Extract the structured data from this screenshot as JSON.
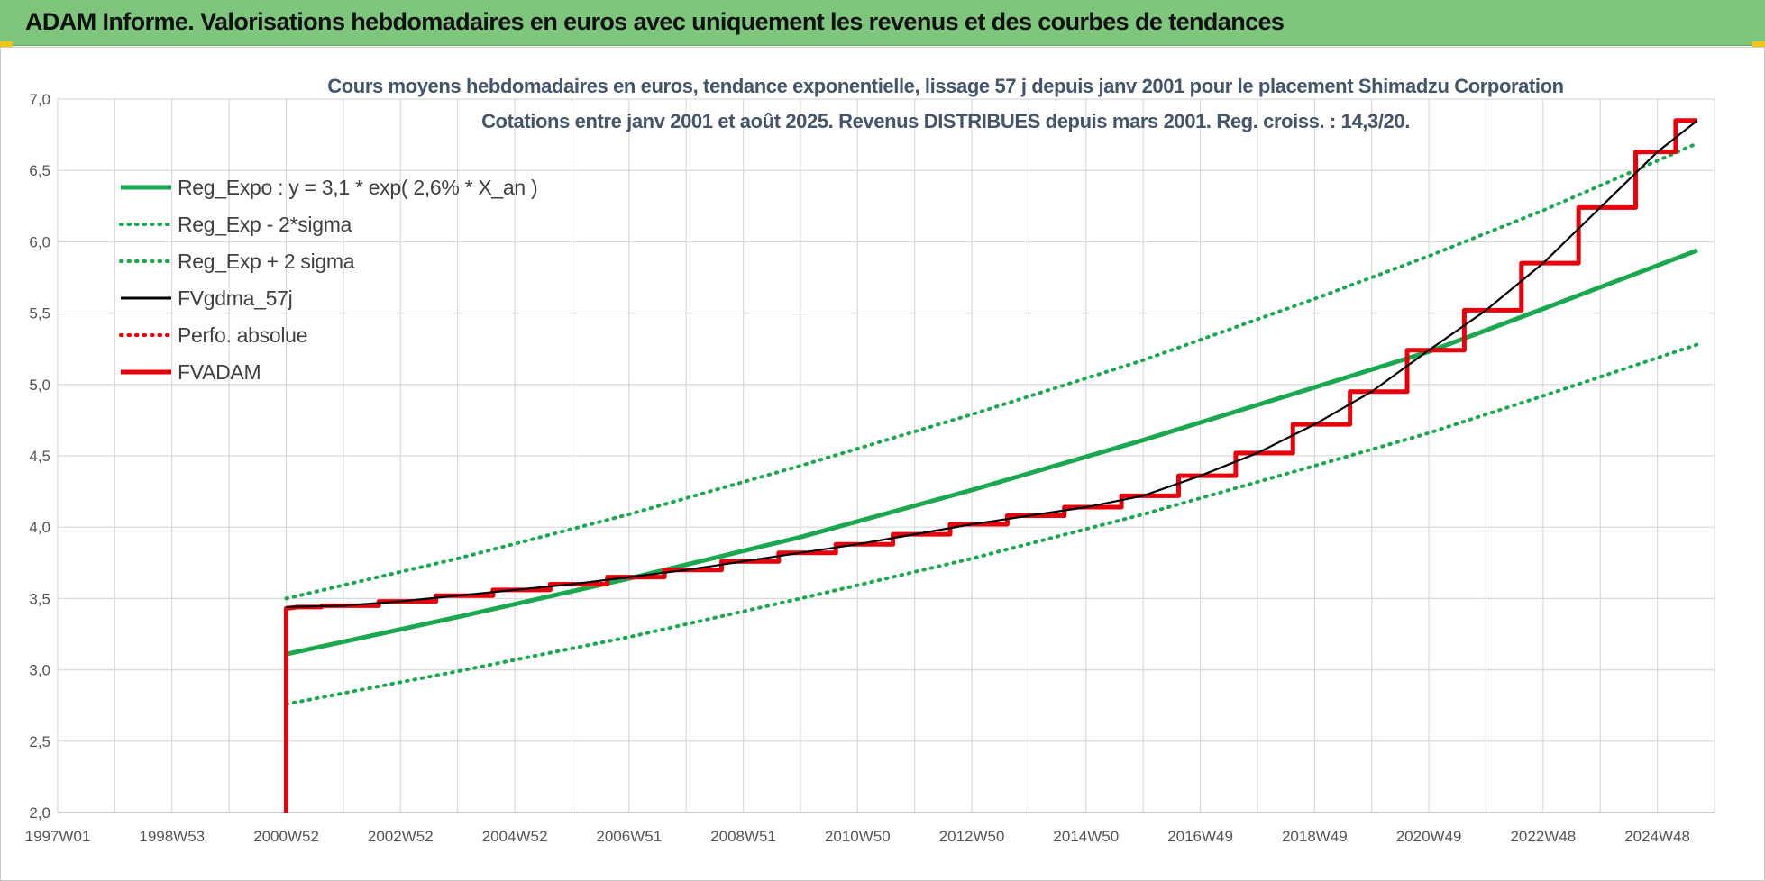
{
  "header": {
    "title": "ADAM Informe. Valorisations hebdomadaires en euros avec uniquement les revenus et des courbes de tendances"
  },
  "colors": {
    "banner": "#7dc67c",
    "reg_green": "#1aa84f",
    "red": "#e8000b",
    "black": "#000000",
    "grid": "#d9d9d9"
  },
  "chart_data": {
    "type": "line",
    "title": "Cours moyens hebdomadaires en euros, tendance exponentielle, lissage 57 j depuis janv 2001 pour le placement Shimadzu Corporation",
    "subtitle": "Cotations entre janv 2001 et août 2025. Revenus DISTRIBUES depuis mars 2001. Reg. croiss. : 14,3/20.",
    "xlabel": "",
    "ylabel": "",
    "xlim": [
      1997.0,
      2026.0
    ],
    "ylim": [
      2.0,
      7.0
    ],
    "y_ticks": [
      "2,0",
      "2,5",
      "3,0",
      "3,5",
      "4,0",
      "4,5",
      "5,0",
      "5,5",
      "6,0",
      "6,5",
      "7,0"
    ],
    "x_ticks": [
      {
        "label": "1997W01",
        "x": 1997.0
      },
      {
        "label": "1998W53",
        "x": 1999.0
      },
      {
        "label": "2000W52",
        "x": 2001.0
      },
      {
        "label": "2002W52",
        "x": 2003.0
      },
      {
        "label": "2004W52",
        "x": 2005.0
      },
      {
        "label": "2006W51",
        "x": 2007.0
      },
      {
        "label": "2008W51",
        "x": 2009.0
      },
      {
        "label": "2010W50",
        "x": 2011.0
      },
      {
        "label": "2012W50",
        "x": 2013.0
      },
      {
        "label": "2014W50",
        "x": 2015.0
      },
      {
        "label": "2016W49",
        "x": 2017.0
      },
      {
        "label": "2018W49",
        "x": 2019.0
      },
      {
        "label": "2020W49",
        "x": 2021.0
      },
      {
        "label": "2022W48",
        "x": 2023.0
      },
      {
        "label": "2024W48",
        "x": 2025.0
      }
    ],
    "grid": true,
    "legend_position": "top-left",
    "series": [
      {
        "name": "Reg_Expo : y = 3,1 * exp( 2,6% *  X_an )",
        "color": "#1aa84f",
        "style": "solid",
        "x": [
          2001.0,
          2004.0,
          2007.0,
          2010.0,
          2013.0,
          2016.0,
          2019.0,
          2021.0,
          2023.0,
          2025.7
        ],
        "y": [
          3.11,
          3.37,
          3.64,
          3.93,
          4.26,
          4.61,
          4.98,
          5.23,
          5.53,
          5.94
        ]
      },
      {
        "name": "Reg_Exp - 2*sigma",
        "color": "#1aa84f",
        "style": "dotted",
        "x": [
          2001.0,
          2004.0,
          2007.0,
          2010.0,
          2013.0,
          2016.0,
          2019.0,
          2021.0,
          2023.0,
          2025.7
        ],
        "y": [
          2.76,
          2.99,
          3.23,
          3.5,
          3.78,
          4.09,
          4.43,
          4.66,
          4.92,
          5.28
        ]
      },
      {
        "name": "Reg_Exp + 2 sigma",
        "color": "#1aa84f",
        "style": "dotted",
        "x": [
          2001.0,
          2004.0,
          2007.0,
          2010.0,
          2013.0,
          2016.0,
          2019.0,
          2021.0,
          2023.0,
          2025.7
        ],
        "y": [
          3.5,
          3.78,
          4.09,
          4.43,
          4.79,
          5.17,
          5.6,
          5.9,
          6.22,
          6.69
        ]
      },
      {
        "name": "FVgdma_57j",
        "color": "#000000",
        "style": "solid",
        "x": [
          2001.0,
          2002.0,
          2003.0,
          2004.0,
          2005.0,
          2006.0,
          2007.0,
          2008.0,
          2009.0,
          2010.0,
          2011.0,
          2012.0,
          2013.0,
          2014.0,
          2015.0,
          2016.0,
          2017.0,
          2018.0,
          2019.0,
          2020.0,
          2021.0,
          2022.0,
          2023.0,
          2024.0,
          2025.0,
          2025.7
        ],
        "y": [
          3.44,
          3.45,
          3.48,
          3.52,
          3.56,
          3.6,
          3.65,
          3.7,
          3.76,
          3.82,
          3.88,
          3.95,
          4.02,
          4.08,
          4.14,
          4.22,
          4.36,
          4.52,
          4.72,
          4.95,
          5.24,
          5.52,
          5.85,
          6.24,
          6.63,
          6.85
        ]
      },
      {
        "name": "Perfo. absolue",
        "color": "#e8000b",
        "style": "dotted",
        "x": [],
        "y": []
      },
      {
        "name": "FVADAM",
        "color": "#e8000b",
        "style": "solid-step",
        "x": [
          2001.0,
          2001.0,
          2001.2,
          2002.0,
          2003.0,
          2004.0,
          2005.0,
          2006.0,
          2007.0,
          2008.0,
          2009.0,
          2010.0,
          2011.0,
          2012.0,
          2013.0,
          2014.0,
          2015.0,
          2016.0,
          2017.0,
          2018.0,
          2019.0,
          2020.0,
          2021.0,
          2022.0,
          2023.0,
          2024.0,
          2025.0,
          2025.7
        ],
        "y": [
          2.0,
          3.43,
          3.44,
          3.45,
          3.48,
          3.52,
          3.56,
          3.6,
          3.65,
          3.7,
          3.76,
          3.82,
          3.88,
          3.95,
          4.02,
          4.08,
          4.14,
          4.22,
          4.36,
          4.52,
          4.72,
          4.95,
          5.24,
          5.52,
          5.85,
          6.24,
          6.63,
          6.85
        ]
      }
    ]
  }
}
